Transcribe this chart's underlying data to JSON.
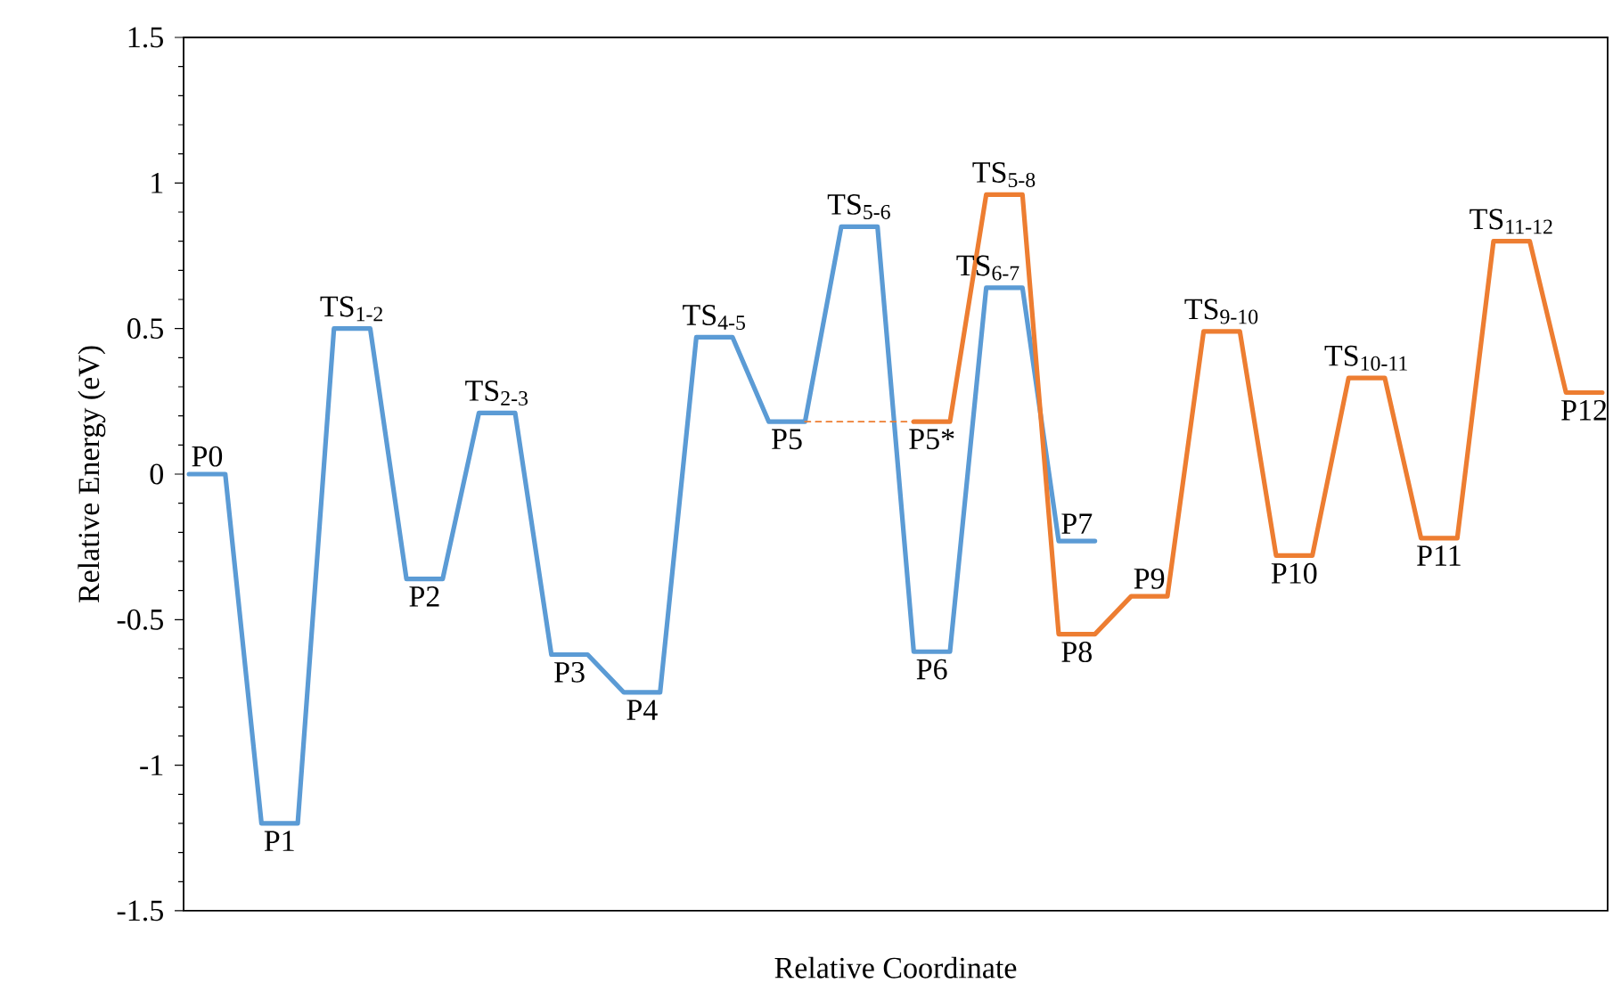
{
  "chart_data": {
    "type": "line",
    "xlabel": "Relative Coordinate",
    "ylabel": "Relative Energy (eV)",
    "categories": [
      null,
      null,
      null,
      null,
      null,
      null,
      null,
      null,
      null,
      null,
      null,
      null,
      null,
      null,
      null,
      null,
      null,
      null,
      null,
      null,
      null,
      null,
      null,
      null,
      null,
      null,
      null,
      null,
      null,
      null,
      null,
      null,
      null,
      null,
      null,
      null,
      null,
      null,
      null,
      null
    ],
    "ylim": [
      -1.5,
      1.5
    ],
    "yticks": [
      -1.5,
      -1,
      -0.5,
      0,
      0.5,
      1,
      1.5
    ],
    "tick_labels": "y",
    "grid": false,
    "marker": "none",
    "series": [
      {
        "color": "#5b9bd5",
        "line_style": "solid",
        "values": [
          0,
          0,
          -1.2,
          -1.2,
          0.5,
          0.5,
          -0.36,
          -0.36,
          0.21,
          0.21,
          -0.62,
          -0.62,
          -0.75,
          -0.75,
          0.47,
          0.47,
          0.18,
          0.18,
          0.85,
          0.85,
          -0.61,
          -0.61,
          0.64,
          0.64,
          -0.23,
          -0.23,
          null,
          null,
          null,
          null,
          null,
          null,
          null,
          null,
          null,
          null,
          null,
          null,
          null,
          null
        ],
        "value_labels": [
          "P0",
          null,
          "P1",
          null,
          "TS$_{1-2}$",
          null,
          "P2",
          null,
          "TS$_{2-3}$",
          null,
          "P3",
          null,
          "P4",
          null,
          "TS$_{4-5}$",
          null,
          "P5",
          null,
          "TS$_{5-6}$",
          null,
          "P6",
          null,
          "TS$_{6-7}$",
          null,
          "P7",
          null,
          null,
          null,
          null,
          null,
          null,
          null,
          null,
          null,
          null,
          null,
          null,
          null,
          null,
          null
        ]
      },
      {
        "color": "#ed7d31",
        "line_style": "solid",
        "values": [
          null,
          null,
          null,
          null,
          null,
          null,
          null,
          null,
          null,
          null,
          null,
          null,
          null,
          null,
          null,
          null,
          null,
          null,
          null,
          null,
          0.18,
          0.18,
          0.96,
          0.96,
          -0.55,
          -0.55,
          -0.42,
          -0.42,
          0.49,
          0.49,
          -0.28,
          -0.28,
          0.33,
          0.33,
          -0.22,
          -0.22,
          0.8,
          0.8,
          0.28,
          0.28
        ],
        "value_labels": [
          null,
          null,
          null,
          null,
          null,
          null,
          null,
          null,
          null,
          null,
          null,
          null,
          null,
          null,
          null,
          null,
          null,
          null,
          null,
          null,
          "P5*",
          null,
          "TS$_{5-8}$",
          null,
          "P8",
          null,
          "P9",
          null,
          "TS$_{9-10}$",
          null,
          "P10",
          null,
          "TS$_{10-11}$",
          null,
          "P11",
          null,
          "TS$_{11-12}$",
          null,
          "P12",
          null
        ]
      },
      {
        "color": "#ed7d31",
        "line_style": "dashed",
        "values": [
          null,
          null,
          null,
          null,
          null,
          null,
          null,
          null,
          null,
          null,
          null,
          null,
          null,
          null,
          null,
          null,
          null,
          0.18,
          0.18,
          0.18,
          0.18,
          null,
          null,
          null,
          null,
          null,
          null,
          null,
          null,
          null,
          null,
          null,
          null,
          null,
          null,
          null,
          null,
          null,
          null,
          null
        ]
      }
    ]
  }
}
